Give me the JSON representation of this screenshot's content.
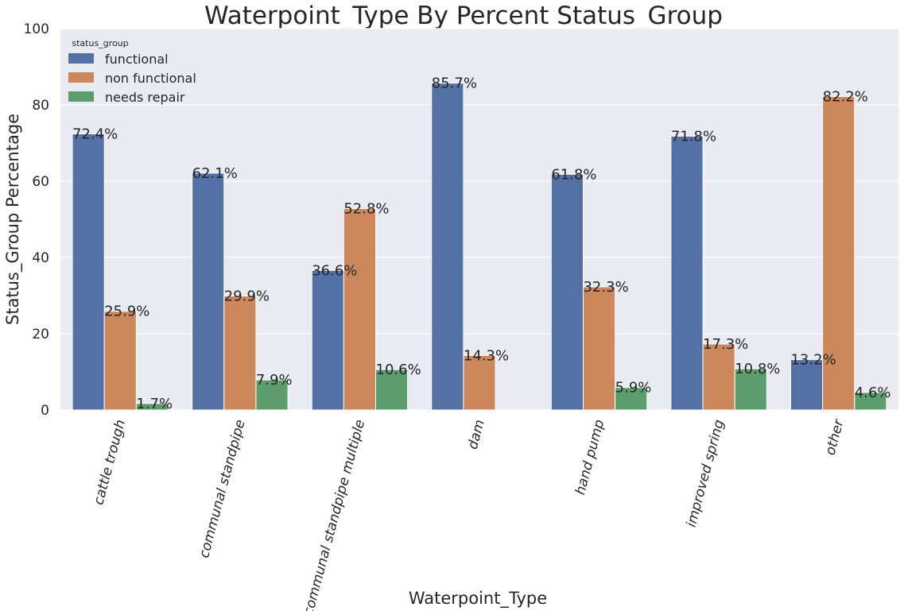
{
  "chart_data": {
    "type": "bar",
    "title": "Waterpoint_Type By Percent Status_Group",
    "xlabel": "Waterpoint_Type",
    "ylabel": "Status_Group Percentage",
    "ylim": [
      0,
      100
    ],
    "yticks": [
      0,
      20,
      40,
      60,
      80,
      100
    ],
    "grid": true,
    "legend": {
      "title": "status_group",
      "placement": "top-left"
    },
    "categories": [
      "cattle trough",
      "communal standpipe",
      "communal standpipe multiple",
      "dam",
      "hand pump",
      "improved spring",
      "other"
    ],
    "series": [
      {
        "name": "functional",
        "color": "#5471a5",
        "values": [
          72.4,
          62.1,
          36.6,
          85.7,
          61.8,
          71.8,
          13.2
        ],
        "labels": [
          "72.4%",
          "62.1%",
          "36.6%",
          "85.7%",
          "61.8%",
          "71.8%",
          "13.2%"
        ]
      },
      {
        "name": "non functional",
        "color": "#cc875c",
        "values": [
          25.9,
          29.9,
          52.8,
          14.3,
          32.3,
          17.3,
          82.2
        ],
        "labels": [
          "25.9%",
          "29.9%",
          "52.8%",
          "14.3%",
          "32.3%",
          "17.3%",
          "82.2%"
        ]
      },
      {
        "name": "needs repair",
        "color": "#5b9e6b",
        "values": [
          1.7,
          7.9,
          10.6,
          null,
          5.9,
          10.8,
          4.6
        ],
        "labels": [
          "1.7%",
          "7.9%",
          "10.6%",
          "",
          "5.9%",
          "10.8%",
          "4.6%"
        ]
      }
    ]
  }
}
